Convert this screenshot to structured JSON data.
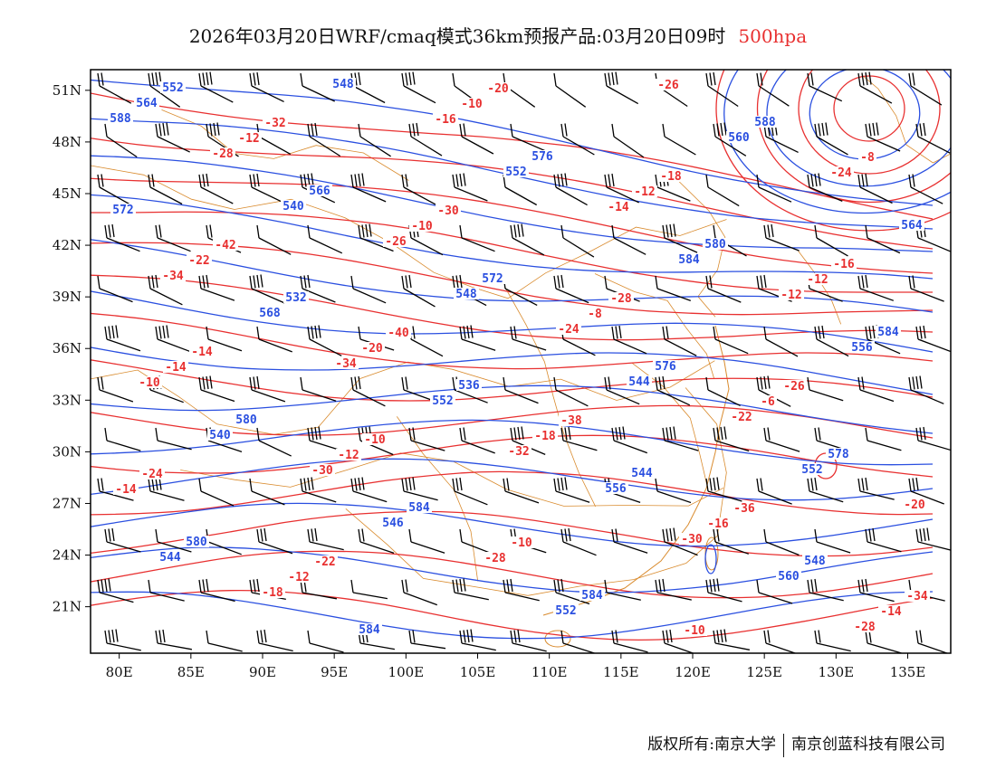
{
  "title": {
    "main": "2026年03月20日WRF/cmaq模式36km预报产品:03月20日09时",
    "level": "500hpa"
  },
  "colors": {
    "height": "#2a4fe0",
    "temperature": "#e83030",
    "boundary": "#d98b2e",
    "frame": "#000000"
  },
  "axes": {
    "lon_ticks": [
      "80E",
      "85E",
      "90E",
      "95E",
      "100E",
      "105E",
      "110E",
      "115E",
      "120E",
      "125E",
      "130E",
      "135E"
    ],
    "lat_ticks": [
      "51N",
      "48N",
      "45N",
      "42N",
      "39N",
      "36N",
      "33N",
      "30N",
      "27N",
      "24N",
      "21N"
    ],
    "lon_values": [
      80,
      85,
      90,
      95,
      100,
      105,
      110,
      115,
      120,
      125,
      130,
      135
    ],
    "lat_values": [
      51,
      48,
      45,
      42,
      39,
      36,
      33,
      30,
      27,
      24,
      21
    ]
  },
  "height_labels": [
    "588",
    "540",
    "548",
    "544",
    "552",
    "544",
    "548",
    "552",
    "584",
    "556",
    "540",
    "546",
    "552",
    "560",
    "564",
    "568",
    "552",
    "556",
    "560",
    "564",
    "566",
    "572",
    "576",
    "578",
    "580",
    "584",
    "576",
    "580",
    "584",
    "580",
    "584",
    "584",
    "588",
    "572",
    "532",
    "536",
    "544",
    "548",
    "552"
  ],
  "temp_labels": [
    "-34",
    "-34",
    "-32",
    "-30",
    "-28",
    "-28",
    "-26",
    "-24",
    "-22",
    "-20",
    "-18",
    "-16",
    "-14",
    "-12",
    "-10",
    "-30",
    "-28",
    "-26",
    "-24",
    "-22",
    "-20",
    "-18",
    "-16",
    "-14",
    "-12",
    "-10",
    "-8",
    "-6",
    "-14",
    "-12",
    "-10",
    "-12",
    "-12",
    "-14",
    "-12",
    "-10",
    "-10",
    "-8",
    "-42",
    "-40",
    "-38",
    "-36",
    "-34",
    "-32",
    "-30",
    "-28",
    "-26",
    "-24",
    "-22",
    "-20",
    "-18",
    "-16",
    "-14",
    "-10"
  ],
  "footer": {
    "copyright": "版权所有:南京大学",
    "company": "南京创蓝科技有限公司"
  }
}
